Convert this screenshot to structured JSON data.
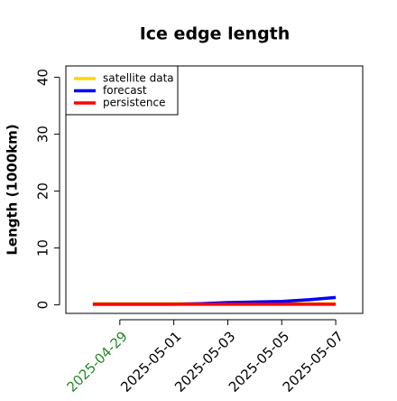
{
  "chart_data": {
    "type": "line",
    "title": "Ice edge length",
    "y_label": "Length (1000km)",
    "x": [
      "2025-04-28",
      "2025-04-29",
      "2025-04-30",
      "2025-05-01",
      "2025-05-02",
      "2025-05-03",
      "2025-05-04",
      "2025-05-05",
      "2025-05-06",
      "2025-05-07"
    ],
    "series": [
      {
        "name": "satellite data",
        "color": "#ffd700",
        "values": [
          0.2,
          0.2,
          0.2,
          0.2,
          0.2,
          0.2,
          0.2,
          0.2,
          0.2,
          0.2
        ]
      },
      {
        "name": "forecast",
        "color": "#0000ff",
        "values": [
          0.1,
          0.1,
          0.1,
          0.1,
          0.2,
          0.4,
          0.5,
          0.6,
          0.9,
          1.3
        ]
      },
      {
        "name": "persistence",
        "color": "#ff0000",
        "values": [
          0.1,
          0.1,
          0.1,
          0.1,
          0.1,
          0.1,
          0.1,
          0.1,
          0.1,
          0.1
        ]
      }
    ],
    "xlim": [
      "2025-04-27",
      "2025-05-08"
    ],
    "xticks": [
      "2025-04-29",
      "2025-05-01",
      "2025-05-03",
      "2025-05-05",
      "2025-05-07"
    ],
    "xtick_colors": [
      "#228b22",
      "#000000",
      "#000000",
      "#000000",
      "#000000"
    ],
    "ylim": [
      -1.5,
      42
    ],
    "yticks": [
      0,
      10,
      20,
      30,
      40
    ],
    "legend": "top-left"
  }
}
